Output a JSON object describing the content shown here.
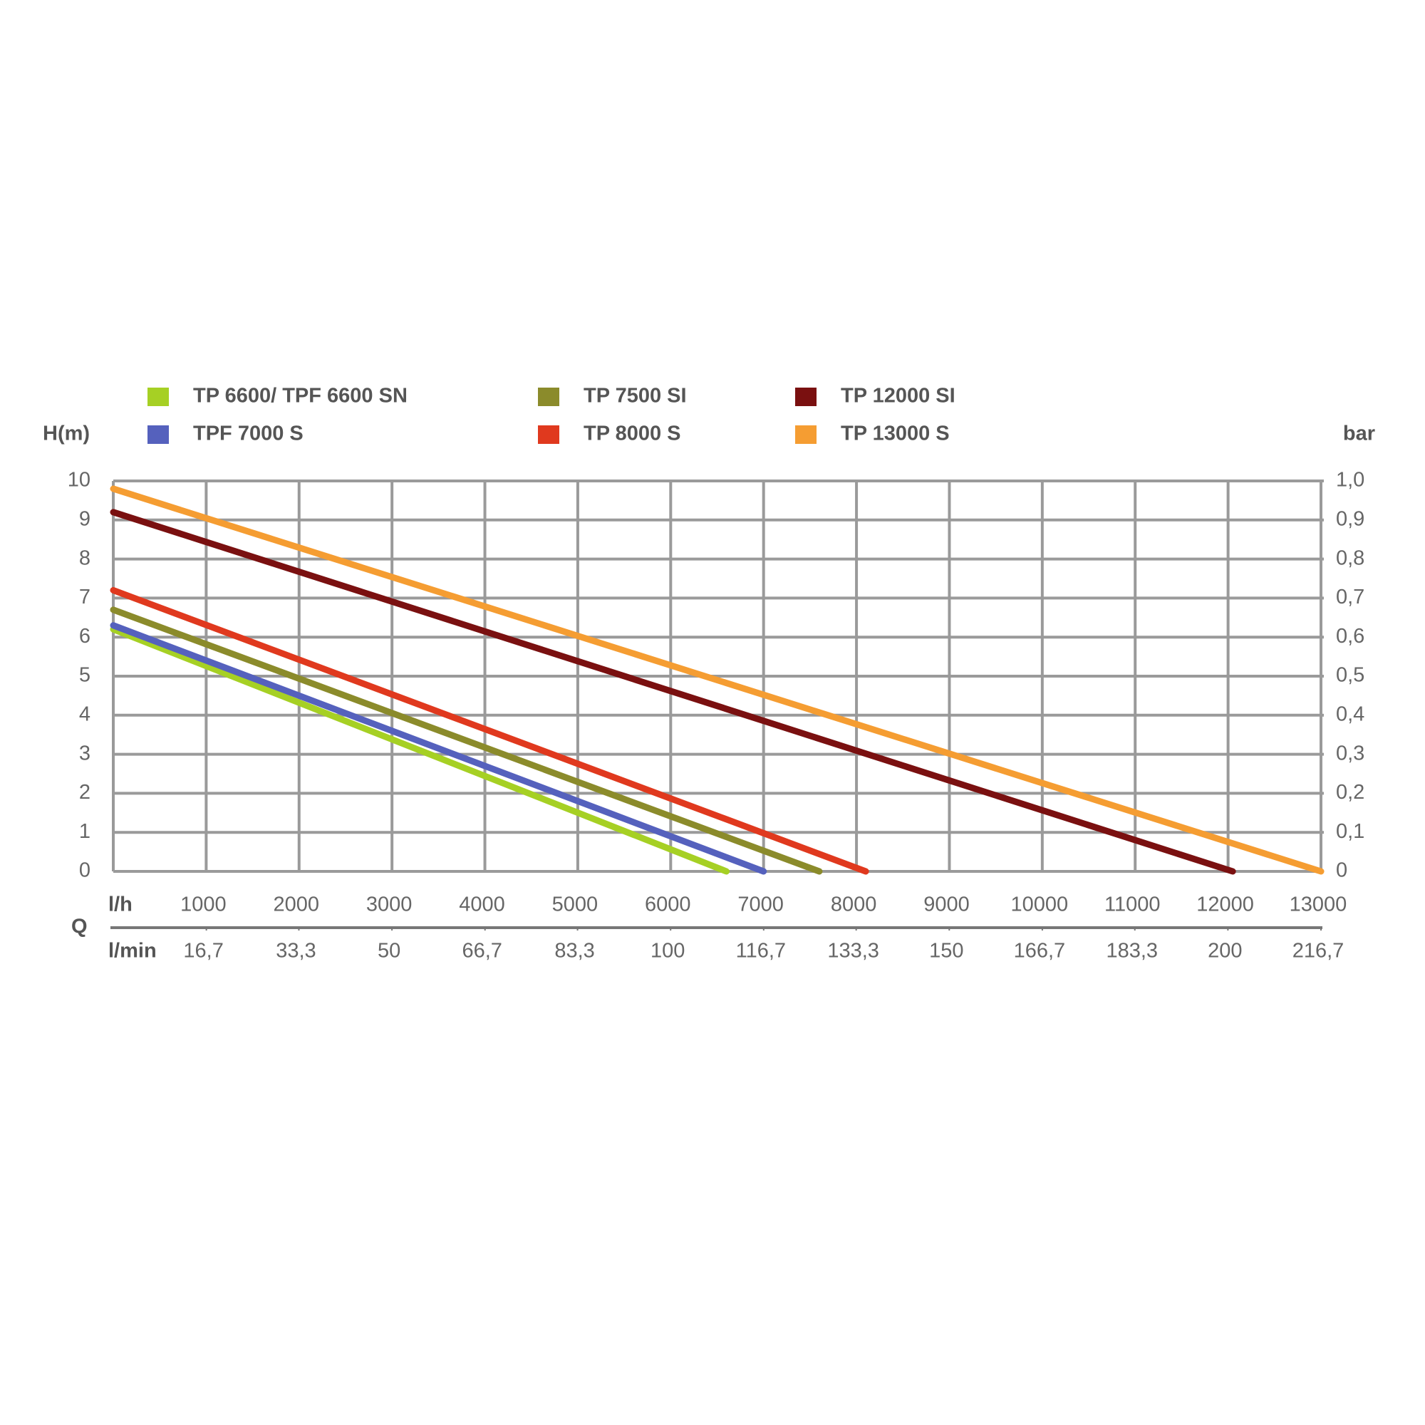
{
  "chart_data": {
    "type": "line",
    "y_label": "H(m)",
    "y2_label": "bar",
    "x_label": "Q",
    "x_unit": "l/h",
    "x2_unit": "l/min",
    "xlim": [
      0,
      13000
    ],
    "xticks": [
      1000,
      2000,
      3000,
      4000,
      5000,
      6000,
      7000,
      8000,
      9000,
      10000,
      11000,
      12000,
      13000
    ],
    "x2lim": [
      0,
      216.7
    ],
    "x2ticks": [
      {
        "value": 16.7,
        "label": "16,7"
      },
      {
        "value": 33.3,
        "label": "33,3"
      },
      50,
      {
        "value": 66.7,
        "label": "66,7"
      },
      {
        "value": 83.3,
        "label": "83,3"
      },
      100,
      {
        "value": 116.7,
        "label": "116,7"
      },
      {
        "value": 133.3,
        "label": "133,3"
      },
      150,
      {
        "value": 166.7,
        "label": "166,7"
      },
      {
        "value": 183.3,
        "label": "183,3"
      },
      200,
      {
        "value": 216.7,
        "label": "216,7"
      }
    ],
    "ylim": [
      0,
      10
    ],
    "yticks": [
      0,
      1,
      2,
      3,
      4,
      5,
      6,
      7,
      8,
      9,
      10
    ],
    "y2lim": [
      0,
      1
    ],
    "y2ticks": [
      0,
      {
        "value": 0.1,
        "label": "0,1"
      },
      {
        "value": 0.2,
        "label": "0,2"
      },
      {
        "value": 0.3,
        "label": "0,3"
      },
      {
        "value": 0.4,
        "label": "0,4"
      },
      {
        "value": 0.5,
        "label": "0,5"
      },
      {
        "value": 0.6,
        "label": "0,6"
      },
      {
        "value": 0.7,
        "label": "0,7"
      },
      {
        "value": 0.8,
        "label": "0,8"
      },
      {
        "value": 0.9,
        "label": "0,9"
      },
      {
        "value": 1.0,
        "label": "1,0"
      }
    ],
    "grid": true,
    "series": [
      {
        "name": "TP 6600/ TPF 6600 SN",
        "color": "#a6d024",
        "x": [
          0,
          6600
        ],
        "values": [
          6.2,
          0
        ]
      },
      {
        "name": "TPF 7000 S",
        "color": "#5561bd",
        "x": [
          0,
          7000
        ],
        "values": [
          6.3,
          0
        ]
      },
      {
        "name": "TP 7500 SI",
        "color": "#8b8b2b",
        "x": [
          0,
          7600
        ],
        "values": [
          6.7,
          0
        ]
      },
      {
        "name": "TP 8000 S",
        "color": "#e0391e",
        "x": [
          0,
          8100
        ],
        "values": [
          7.2,
          0
        ]
      },
      {
        "name": "TP 12000 SI",
        "color": "#7a1010",
        "x": [
          0,
          12050
        ],
        "values": [
          9.2,
          0
        ]
      },
      {
        "name": "TP 13000 S",
        "color": "#f59d32",
        "x": [
          0,
          13000
        ],
        "values": [
          9.8,
          0
        ]
      }
    ]
  }
}
